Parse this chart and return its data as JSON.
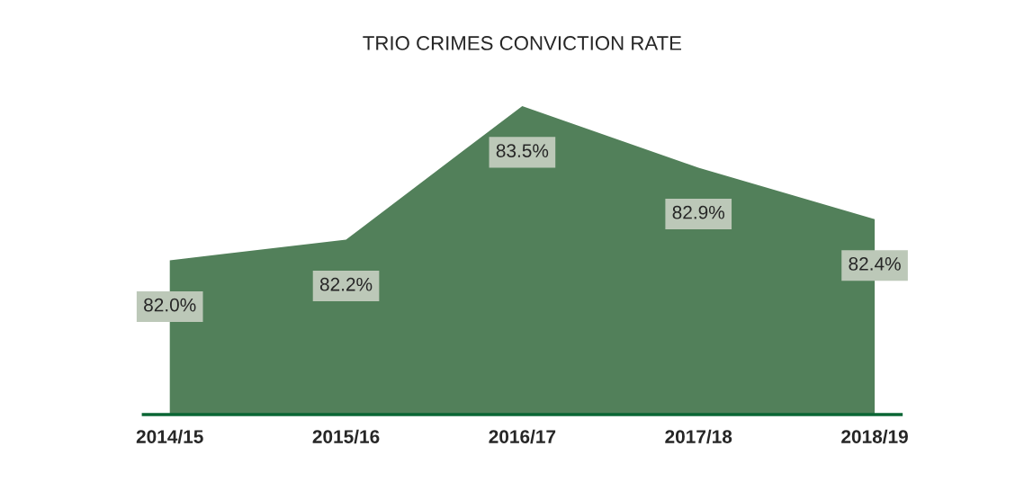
{
  "chart_data": {
    "type": "area",
    "title": "TRIO CRIMES CONVICTION RATE",
    "categories": [
      "2014/15",
      "2015/16",
      "2016/17",
      "2017/18",
      "2018/19"
    ],
    "series": [
      {
        "color": "#52805a",
        "values": [
          82.0,
          82.2,
          83.5,
          82.9,
          82.4
        ],
        "value_labels": [
          "82.0%",
          "82.2%",
          "83.5%",
          "82.9%",
          "82.4%"
        ]
      }
    ]
  }
}
